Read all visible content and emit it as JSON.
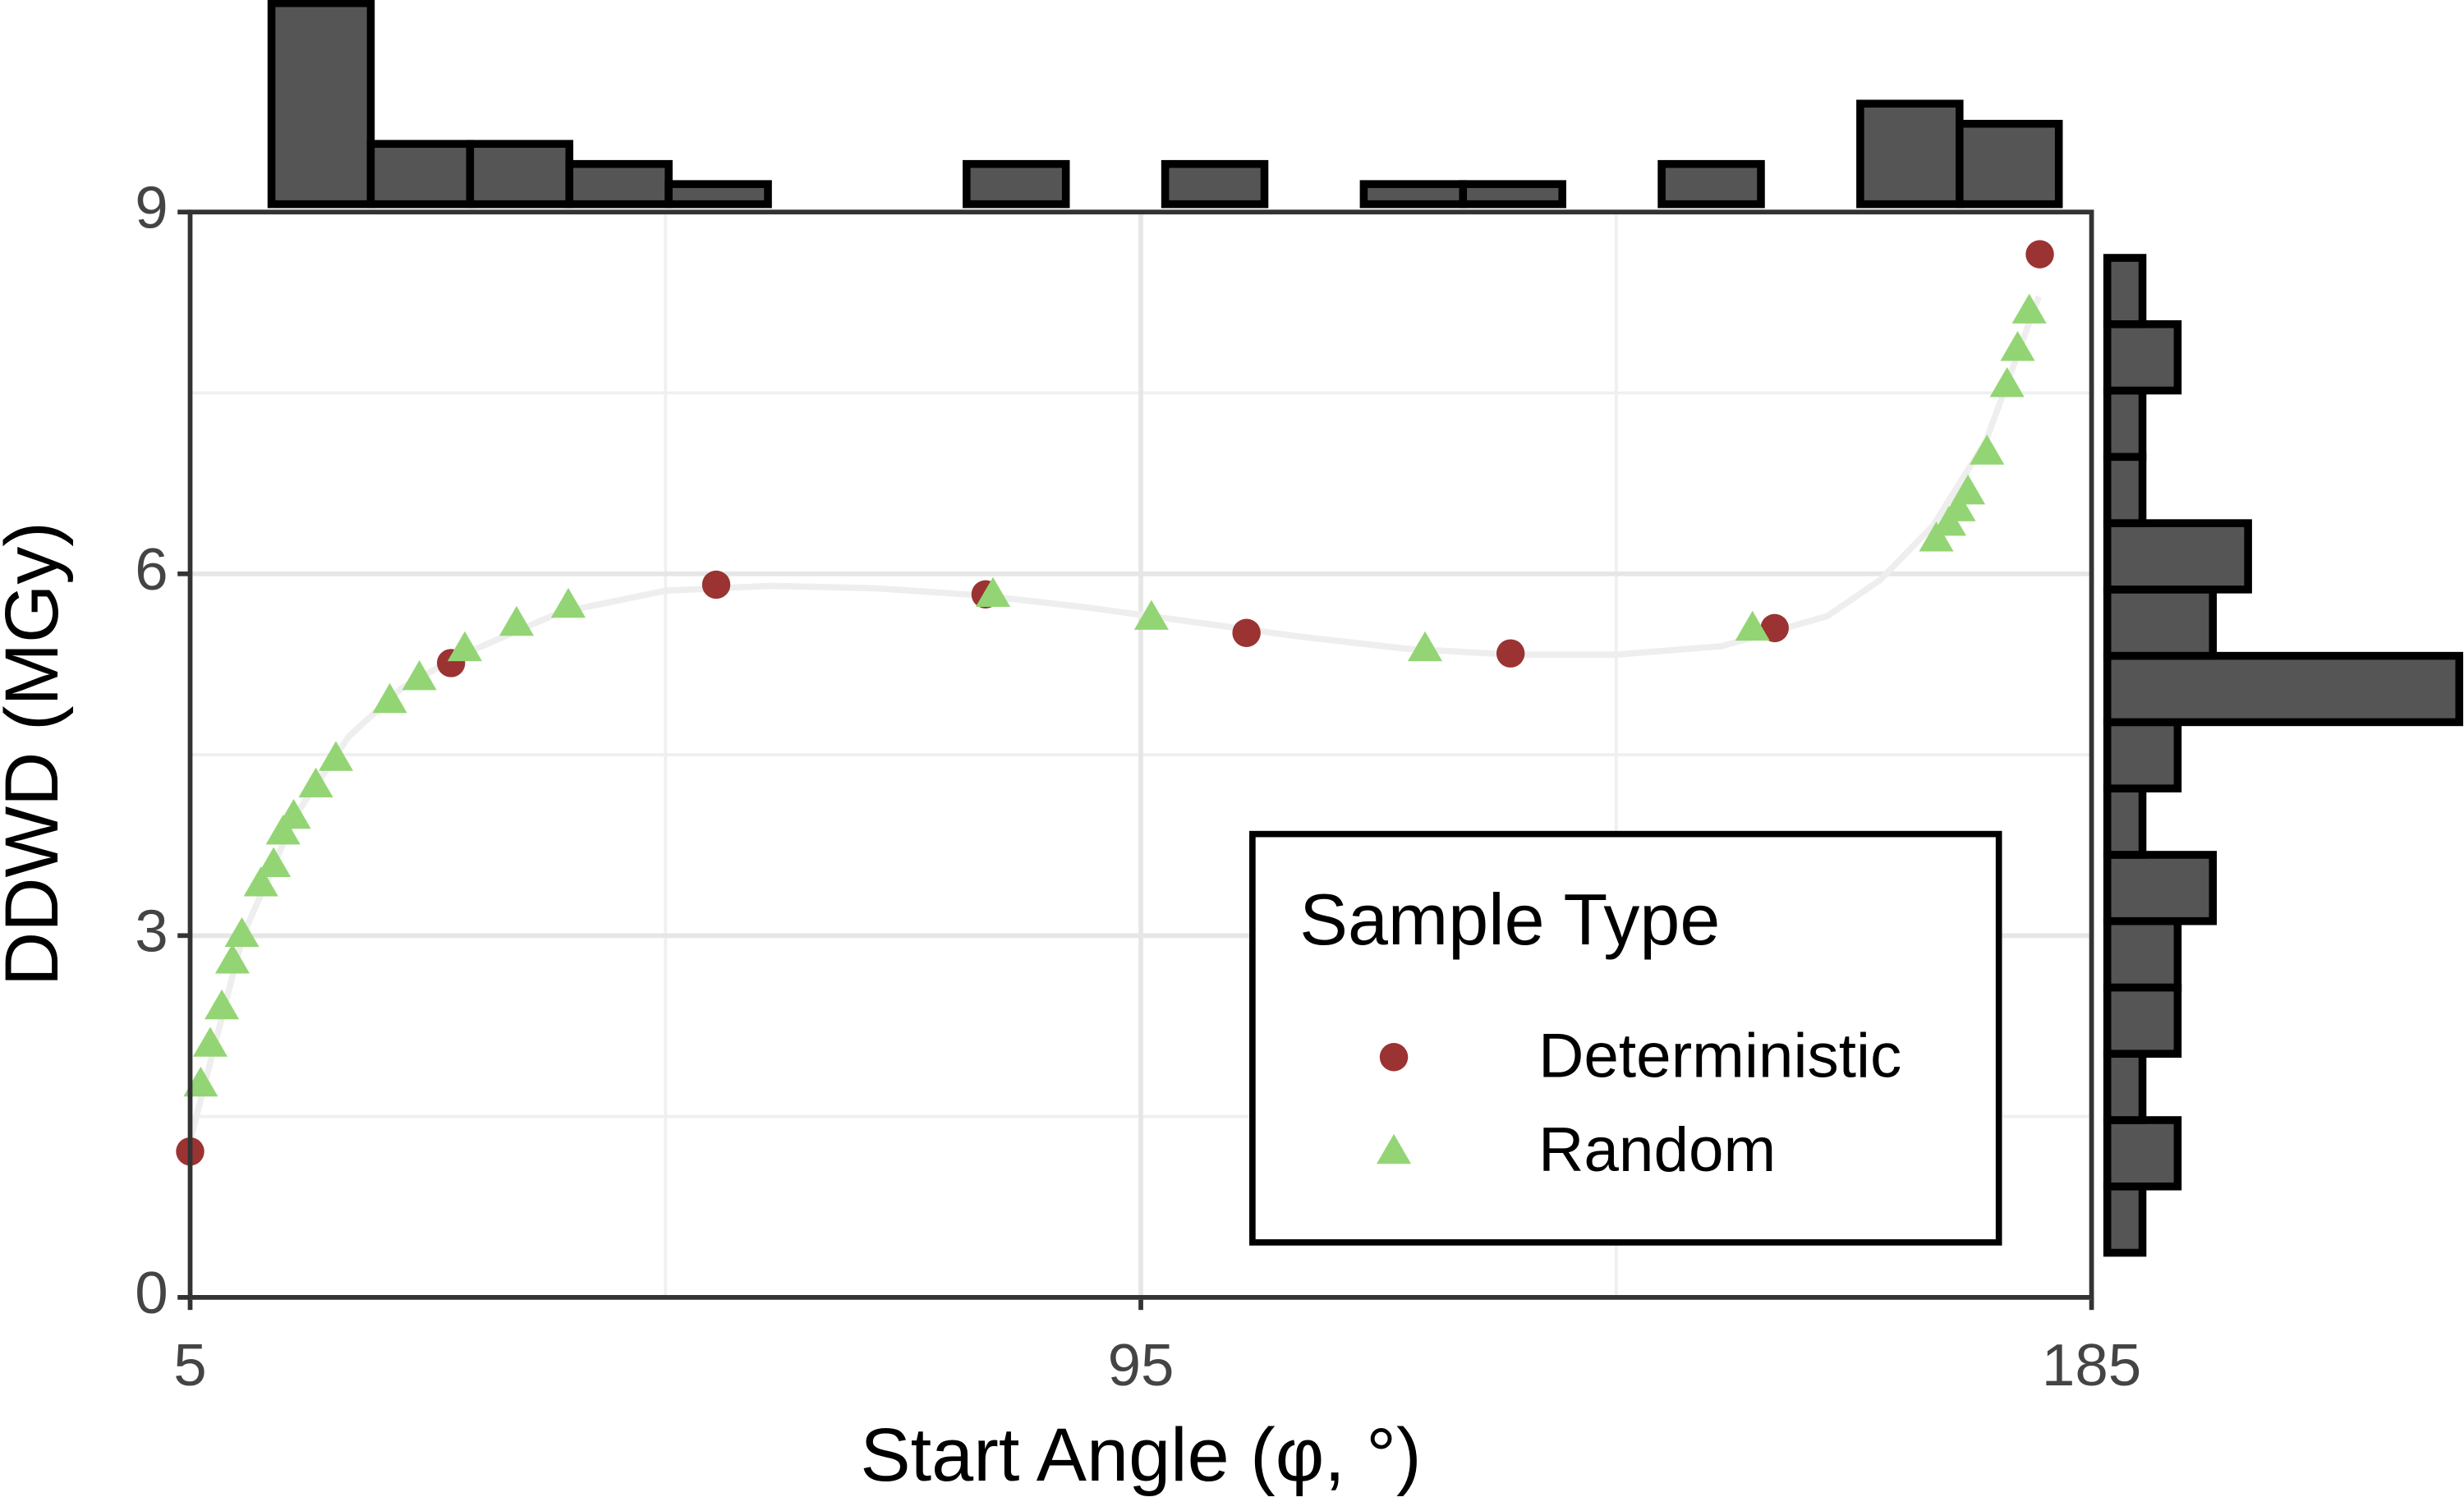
{
  "chart_data": {
    "type": "scatter",
    "x_label": "Start Angle (φ, °)",
    "y_label": "DDWD (MGy)",
    "xlim": [
      5,
      185
    ],
    "xticks": [
      5,
      95,
      185
    ],
    "xminorticks": [
      50,
      140
    ],
    "ylim": [
      0,
      9
    ],
    "yticks": [
      0,
      3,
      6,
      9
    ],
    "yminorticks": [
      1.5,
      4.5,
      7.5
    ],
    "grid": true,
    "legend": {
      "title": "Sample Type",
      "position": "bottom-right"
    },
    "series": [
      {
        "name": "Deterministic",
        "color": "#9b3333",
        "marker": "circle",
        "x": [
          5,
          29.7,
          54.8,
          80.3,
          105,
          130,
          155,
          180.1
        ],
        "y": [
          1.21,
          5.26,
          5.91,
          5.83,
          5.51,
          5.34,
          5.55,
          8.65
        ]
      },
      {
        "name": "Random",
        "color": "#93d574",
        "marker": "triangle",
        "x": [
          6.0,
          6.9,
          8.0,
          9.0,
          9.9,
          11.7,
          12.9,
          13.8,
          14.8,
          16.9,
          18.8,
          23.9,
          26.7,
          31.0,
          35.9,
          40.8,
          81.0,
          96.0,
          121.9,
          152.9,
          170.3,
          171.5,
          172.4,
          173.3,
          175.1,
          177.0,
          178.0,
          179.1
        ],
        "y": [
          1.77,
          2.1,
          2.41,
          2.79,
          3.01,
          3.43,
          3.59,
          3.86,
          3.99,
          4.25,
          4.47,
          4.95,
          5.14,
          5.38,
          5.59,
          5.74,
          5.83,
          5.64,
          5.38,
          5.55,
          6.29,
          6.42,
          6.54,
          6.68,
          7.01,
          7.57,
          7.87,
          8.18
        ]
      }
    ],
    "trend": {
      "color": "#eeeeee",
      "x": [
        5,
        10,
        15,
        20,
        25,
        30,
        40,
        50,
        60,
        70,
        80,
        90,
        100,
        110,
        120,
        130,
        140,
        150,
        160,
        165,
        170,
        175,
        180
      ],
      "y": [
        1.3,
        3.0,
        4.0,
        4.65,
        5.05,
        5.3,
        5.68,
        5.86,
        5.9,
        5.88,
        5.82,
        5.72,
        5.6,
        5.48,
        5.38,
        5.33,
        5.33,
        5.4,
        5.65,
        5.95,
        6.4,
        7.1,
        8.3
      ]
    },
    "top_histogram": {
      "color": "#555555",
      "bins": [
        12.7,
        22.1,
        31.5,
        40.9,
        50.3,
        59.7,
        69.1,
        78.5,
        87.9,
        97.3,
        106.7,
        116.1,
        125.5,
        134.9,
        144.3,
        153.7,
        163.1,
        172.5,
        181.9
      ],
      "counts": [
        10,
        3,
        3,
        2,
        1,
        0,
        0,
        2,
        0,
        2,
        0,
        1,
        1,
        0,
        2,
        0,
        5,
        4
      ]
    },
    "right_histogram": {
      "color": "#555555",
      "bins": [
        0.37,
        0.92,
        1.47,
        2.02,
        2.57,
        3.12,
        3.67,
        4.22,
        4.77,
        5.32,
        5.87,
        6.42,
        6.97,
        7.52,
        8.07,
        8.62
      ],
      "counts": [
        1,
        2,
        1,
        2,
        2,
        3,
        1,
        2,
        10,
        3,
        4,
        1,
        1,
        2,
        1
      ]
    }
  }
}
